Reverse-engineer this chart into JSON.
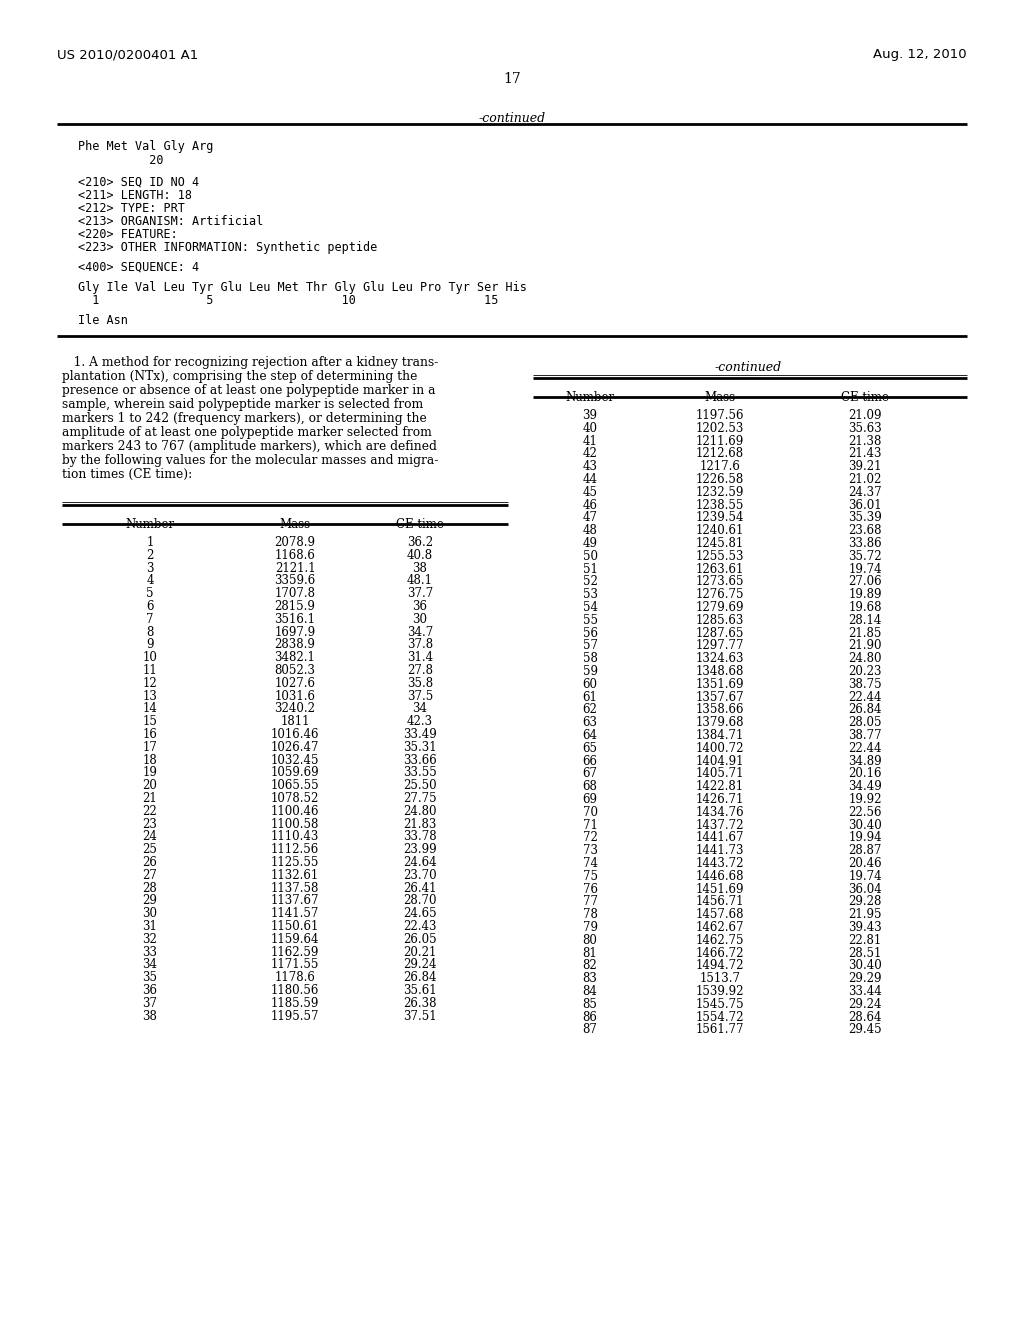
{
  "header_left": "US 2010/0200401 A1",
  "header_right": "Aug. 12, 2010",
  "page_number": "17",
  "continued_top": "-continued",
  "table_left": {
    "headers": [
      "Number",
      "Mass",
      "CE time"
    ],
    "rows": [
      [
        1,
        "2078.9",
        "36.2"
      ],
      [
        2,
        "1168.6",
        "40.8"
      ],
      [
        3,
        "2121.1",
        "38"
      ],
      [
        4,
        "3359.6",
        "48.1"
      ],
      [
        5,
        "1707.8",
        "37.7"
      ],
      [
        6,
        "2815.9",
        "36"
      ],
      [
        7,
        "3516.1",
        "30"
      ],
      [
        8,
        "1697.9",
        "34.7"
      ],
      [
        9,
        "2838.9",
        "37.8"
      ],
      [
        10,
        "3482.1",
        "31.4"
      ],
      [
        11,
        "8052.3",
        "27.8"
      ],
      [
        12,
        "1027.6",
        "35.8"
      ],
      [
        13,
        "1031.6",
        "37.5"
      ],
      [
        14,
        "3240.2",
        "34"
      ],
      [
        15,
        "1811",
        "42.3"
      ],
      [
        16,
        "1016.46",
        "33.49"
      ],
      [
        17,
        "1026.47",
        "35.31"
      ],
      [
        18,
        "1032.45",
        "33.66"
      ],
      [
        19,
        "1059.69",
        "33.55"
      ],
      [
        20,
        "1065.55",
        "25.50"
      ],
      [
        21,
        "1078.52",
        "27.75"
      ],
      [
        22,
        "1100.46",
        "24.80"
      ],
      [
        23,
        "1100.58",
        "21.83"
      ],
      [
        24,
        "1110.43",
        "33.78"
      ],
      [
        25,
        "1112.56",
        "23.99"
      ],
      [
        26,
        "1125.55",
        "24.64"
      ],
      [
        27,
        "1132.61",
        "23.70"
      ],
      [
        28,
        "1137.58",
        "26.41"
      ],
      [
        29,
        "1137.67",
        "28.70"
      ],
      [
        30,
        "1141.57",
        "24.65"
      ],
      [
        31,
        "1150.61",
        "22.43"
      ],
      [
        32,
        "1159.64",
        "26.05"
      ],
      [
        33,
        "1162.59",
        "20.21"
      ],
      [
        34,
        "1171.55",
        "29.24"
      ],
      [
        35,
        "1178.6",
        "26.84"
      ],
      [
        36,
        "1180.56",
        "35.61"
      ],
      [
        37,
        "1185.59",
        "26.38"
      ],
      [
        38,
        "1195.57",
        "37.51"
      ]
    ]
  },
  "table_right": {
    "headers": [
      "Number",
      "Mass",
      "CE time"
    ],
    "rows": [
      [
        39,
        "1197.56",
        "21.09"
      ],
      [
        40,
        "1202.53",
        "35.63"
      ],
      [
        41,
        "1211.69",
        "21.38"
      ],
      [
        42,
        "1212.68",
        "21.43"
      ],
      [
        43,
        "1217.6",
        "39.21"
      ],
      [
        44,
        "1226.58",
        "21.02"
      ],
      [
        45,
        "1232.59",
        "24.37"
      ],
      [
        46,
        "1238.55",
        "36.01"
      ],
      [
        47,
        "1239.54",
        "35.39"
      ],
      [
        48,
        "1240.61",
        "23.68"
      ],
      [
        49,
        "1245.81",
        "33.86"
      ],
      [
        50,
        "1255.53",
        "35.72"
      ],
      [
        51,
        "1263.61",
        "19.74"
      ],
      [
        52,
        "1273.65",
        "27.06"
      ],
      [
        53,
        "1276.75",
        "19.89"
      ],
      [
        54,
        "1279.69",
        "19.68"
      ],
      [
        55,
        "1285.63",
        "28.14"
      ],
      [
        56,
        "1287.65",
        "21.85"
      ],
      [
        57,
        "1297.77",
        "21.90"
      ],
      [
        58,
        "1324.63",
        "24.80"
      ],
      [
        59,
        "1348.68",
        "20.23"
      ],
      [
        60,
        "1351.69",
        "38.75"
      ],
      [
        61,
        "1357.67",
        "22.44"
      ],
      [
        62,
        "1358.66",
        "26.84"
      ],
      [
        63,
        "1379.68",
        "28.05"
      ],
      [
        64,
        "1384.71",
        "38.77"
      ],
      [
        65,
        "1400.72",
        "22.44"
      ],
      [
        66,
        "1404.91",
        "34.89"
      ],
      [
        67,
        "1405.71",
        "20.16"
      ],
      [
        68,
        "1422.81",
        "34.49"
      ],
      [
        69,
        "1426.71",
        "19.92"
      ],
      [
        70,
        "1434.76",
        "22.56"
      ],
      [
        71,
        "1437.72",
        "30.40"
      ],
      [
        72,
        "1441.67",
        "19.94"
      ],
      [
        73,
        "1441.73",
        "28.87"
      ],
      [
        74,
        "1443.72",
        "20.46"
      ],
      [
        75,
        "1446.68",
        "19.74"
      ],
      [
        76,
        "1451.69",
        "36.04"
      ],
      [
        77,
        "1456.71",
        "29.28"
      ],
      [
        78,
        "1457.68",
        "21.95"
      ],
      [
        79,
        "1462.67",
        "39.43"
      ],
      [
        80,
        "1462.75",
        "22.81"
      ],
      [
        81,
        "1466.72",
        "28.51"
      ],
      [
        82,
        "1494.72",
        "30.40"
      ],
      [
        83,
        "1513.7",
        "29.29"
      ],
      [
        84,
        "1539.92",
        "33.44"
      ],
      [
        85,
        "1545.75",
        "29.24"
      ],
      [
        86,
        "1554.72",
        "28.64"
      ],
      [
        87,
        "1561.77",
        "29.45"
      ]
    ]
  }
}
